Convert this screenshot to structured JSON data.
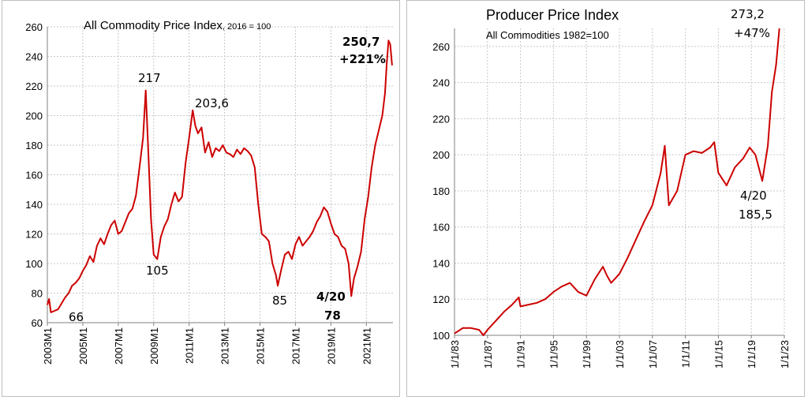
{
  "colors": {
    "series": "#cc0000",
    "grid": "#c8c8c8",
    "axis": "#808080"
  },
  "chart_data": [
    {
      "type": "line",
      "title": "All Commodity Price Index",
      "subtitle": ", 2016 = 100",
      "xlabel": "",
      "ylabel": "",
      "ylim": [
        60,
        260
      ],
      "yticks": [
        60,
        80,
        100,
        120,
        140,
        160,
        180,
        200,
        220,
        240,
        260
      ],
      "xlim": [
        2003.0,
        2022.5
      ],
      "xtick_values": [
        2003,
        2005,
        2007,
        2009,
        2011,
        2013,
        2015,
        2017,
        2019,
        2021
      ],
      "xtick_labels": [
        "2003M1",
        "2005M1",
        "2007M1",
        "2009M1",
        "2011M1",
        "2013M1",
        "2015M1",
        "2017M1",
        "2019M1",
        "2021M1"
      ],
      "grid": true,
      "series": [
        {
          "x": [
            2003.0,
            2003.1,
            2003.2,
            2003.4,
            2003.6,
            2003.8,
            2004.0,
            2004.2,
            2004.4,
            2004.6,
            2004.8,
            2005.0,
            2005.2,
            2005.4,
            2005.6,
            2005.8,
            2006.0,
            2006.2,
            2006.4,
            2006.6,
            2006.8,
            2007.0,
            2007.2,
            2007.4,
            2007.6,
            2007.8,
            2008.0,
            2008.2,
            2008.4,
            2008.55,
            2008.7,
            2008.85,
            2009.0,
            2009.2,
            2009.4,
            2009.6,
            2009.8,
            2010.0,
            2010.2,
            2010.4,
            2010.6,
            2010.8,
            2011.0,
            2011.2,
            2011.35,
            2011.5,
            2011.7,
            2011.9,
            2012.1,
            2012.3,
            2012.5,
            2012.7,
            2012.9,
            2013.1,
            2013.3,
            2013.5,
            2013.7,
            2013.9,
            2014.1,
            2014.3,
            2014.5,
            2014.7,
            2014.9,
            2015.1,
            2015.3,
            2015.5,
            2015.7,
            2015.9,
            2016.0,
            2016.2,
            2016.4,
            2016.6,
            2016.8,
            2017.0,
            2017.2,
            2017.4,
            2017.6,
            2017.8,
            2018.0,
            2018.2,
            2018.4,
            2018.6,
            2018.8,
            2019.0,
            2019.2,
            2019.4,
            2019.6,
            2019.8,
            2020.0,
            2020.15,
            2020.3,
            2020.5,
            2020.7,
            2020.9,
            2021.1,
            2021.3,
            2021.5,
            2021.7,
            2021.9,
            2022.05,
            2022.15,
            2022.25,
            2022.35,
            2022.45
          ],
          "y": [
            72,
            76,
            67,
            68,
            69,
            73,
            77,
            80,
            85,
            87,
            90,
            95,
            99,
            105,
            101,
            112,
            117,
            113,
            120,
            126,
            129,
            120,
            122,
            128,
            134,
            137,
            146,
            165,
            185,
            217,
            175,
            130,
            106,
            103,
            118,
            125,
            130,
            140,
            148,
            142,
            145,
            168,
            185,
            203.6,
            193,
            188,
            192,
            175,
            182,
            172,
            178,
            176,
            180,
            175,
            174,
            172,
            177,
            174,
            178,
            176,
            173,
            165,
            140,
            120,
            118,
            115,
            100,
            92,
            85,
            96,
            106,
            108,
            103,
            113,
            118,
            112,
            115,
            118,
            122,
            128,
            132,
            138,
            135,
            127,
            120,
            118,
            112,
            110,
            100,
            78,
            90,
            98,
            108,
            130,
            145,
            165,
            180,
            190,
            200,
            215,
            235,
            250.7,
            248,
            234
          ]
        }
      ],
      "annotations": [
        {
          "text": "217",
          "x": 2008.55,
          "y": 217
        },
        {
          "text": "105",
          "x": 2009.0,
          "y": 105
        },
        {
          "text": "203,6",
          "x": 2011.2,
          "y": 203.6
        },
        {
          "text": "66",
          "x": 2003.4,
          "y": 66
        },
        {
          "text": "85",
          "x": 2016.0,
          "y": 85
        },
        {
          "text": "4/20",
          "x": 2020.15,
          "y": 78
        },
        {
          "text": "78",
          "x": 2020.15,
          "y": 78
        },
        {
          "text": "250,7",
          "x": 2022.25,
          "y": 250.7
        },
        {
          "text": "+221%",
          "x": 2022.25,
          "y": 250.7
        }
      ]
    },
    {
      "type": "line",
      "title": "Producer Price Index",
      "subtitle": "All Commodities 1982=100",
      "xlabel": "",
      "ylabel": "",
      "ylim": [
        100,
        270
      ],
      "yticks": [
        100,
        120,
        140,
        160,
        180,
        200,
        220,
        240,
        260
      ],
      "xlim": [
        1983.0,
        2023.0
      ],
      "xtick_values": [
        1983,
        1987,
        1991,
        1995,
        1999,
        2003,
        2007,
        2011,
        2015,
        2019,
        2023
      ],
      "xtick_labels": [
        "1/1/83",
        "1/1/87",
        "1/1/91",
        "1/1/95",
        "1/1/99",
        "1/1/03",
        "1/1/07",
        "1/1/11",
        "1/1/15",
        "1/1/19",
        "1/1/23"
      ],
      "grid": true,
      "series": [
        {
          "x": [
            1983.0,
            1984.0,
            1985.0,
            1986.0,
            1986.5,
            1987.0,
            1988.0,
            1989.0,
            1990.0,
            1990.8,
            1991.0,
            1992.0,
            1993.0,
            1994.0,
            1995.0,
            1996.0,
            1997.0,
            1998.0,
            1999.0,
            2000.0,
            2001.0,
            2001.5,
            2002.0,
            2003.0,
            2004.0,
            2005.0,
            2006.0,
            2007.0,
            2008.0,
            2008.5,
            2009.0,
            2010.0,
            2011.0,
            2012.0,
            2013.0,
            2014.0,
            2014.5,
            2015.0,
            2016.0,
            2017.0,
            2018.0,
            2018.8,
            2019.5,
            2020.33,
            2021.0,
            2021.5,
            2022.0,
            2022.4
          ],
          "y": [
            101,
            104,
            104,
            103,
            100,
            103,
            108,
            113,
            117,
            121,
            116,
            117,
            118,
            120,
            124,
            127,
            129,
            124,
            122,
            131,
            138,
            133,
            129,
            134,
            143,
            153,
            163,
            172,
            190,
            205,
            172,
            180,
            200,
            202,
            201,
            204,
            207,
            190,
            183,
            193,
            198,
            204,
            200,
            185.5,
            205,
            235,
            250,
            273.2
          ]
        }
      ],
      "annotations": [
        {
          "text": "273,2",
          "x": 2022.4,
          "y": 273.2
        },
        {
          "text": "+47%",
          "x": 2022.4,
          "y": 273.2
        },
        {
          "text": "4/20",
          "x": 2020.33,
          "y": 185.5
        },
        {
          "text": "185,5",
          "x": 2020.33,
          "y": 185.5
        }
      ]
    }
  ]
}
